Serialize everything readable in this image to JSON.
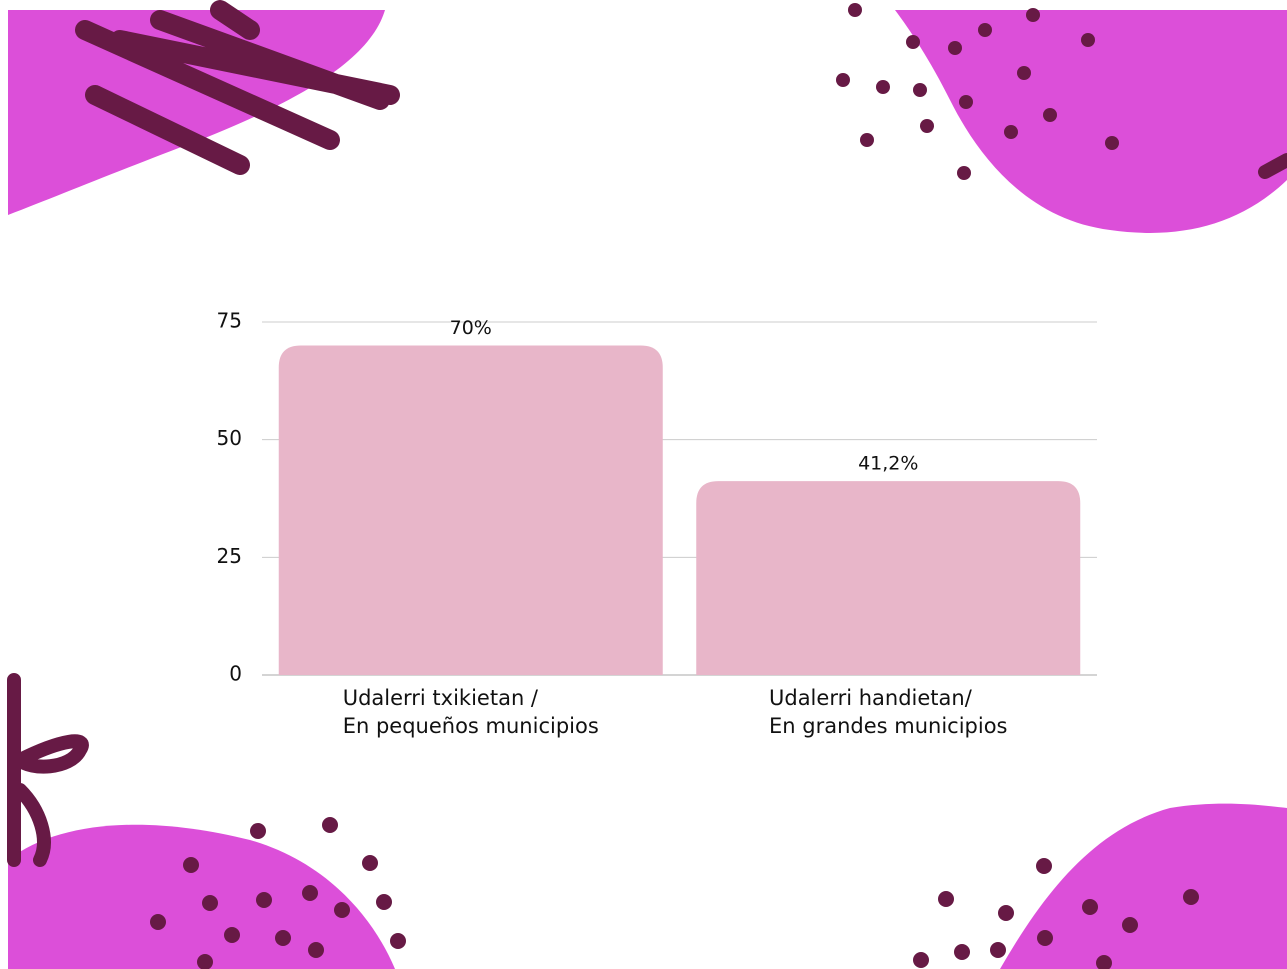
{
  "chart_data": {
    "type": "bar",
    "categories": [
      "Udalerri txikietan /\nEn pequeños municipios",
      "Udalerri handietan/\nEn grandes municipios"
    ],
    "values": [
      70,
      41.2
    ],
    "value_labels": [
      "70%",
      "41,2%"
    ],
    "color": "#e8b6c9",
    "ylim": [
      0,
      75
    ],
    "yticks": [
      0,
      25,
      50,
      75
    ],
    "grid": true
  }
}
